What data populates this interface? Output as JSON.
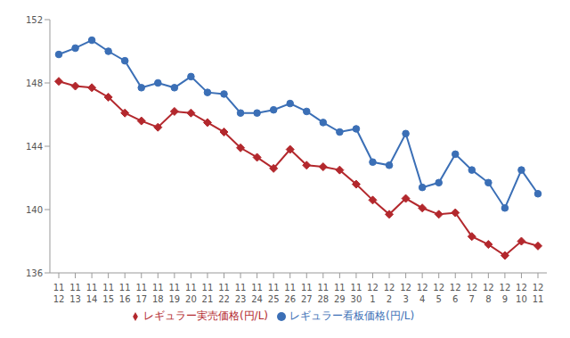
{
  "chart_data": {
    "type": "line",
    "categories": [
      "11\n12",
      "11\n13",
      "11\n14",
      "11\n15",
      "11\n16",
      "11\n17",
      "11\n18",
      "11\n19",
      "11\n20",
      "11\n21",
      "11\n22",
      "11\n23",
      "11\n24",
      "11\n25",
      "11\n26",
      "11\n27",
      "11\n28",
      "11\n29",
      "11\n30",
      "12\n1",
      "12\n2",
      "12\n3",
      "12\n4",
      "12\n5",
      "12\n6",
      "12\n7",
      "12\n8",
      "12\n9",
      "12\n10",
      "12\n11"
    ],
    "series": [
      {
        "name": "レギュラー看板価格(円/L)",
        "color": "#3b6fb6",
        "marker": "circle",
        "values": [
          149.8,
          150.2,
          150.7,
          150.0,
          149.4,
          147.7,
          148.0,
          147.7,
          148.4,
          147.4,
          147.3,
          146.1,
          146.1,
          146.3,
          146.7,
          146.2,
          145.5,
          144.9,
          145.1,
          143.0,
          142.8,
          144.8,
          141.4,
          141.7,
          143.5,
          142.5,
          141.7,
          140.1,
          142.5,
          141.0
        ]
      },
      {
        "name": "レギュラー実売価格(円/L)",
        "color": "#b3282d",
        "marker": "diamond",
        "values": [
          148.1,
          147.8,
          147.7,
          147.1,
          146.1,
          145.6,
          145.2,
          146.2,
          146.1,
          145.5,
          144.9,
          143.9,
          143.3,
          142.6,
          143.8,
          142.8,
          142.7,
          142.5,
          141.6,
          140.6,
          139.7,
          140.7,
          140.1,
          139.7,
          139.8,
          138.3,
          137.8,
          137.1,
          138.0,
          137.7
        ]
      }
    ],
    "ylim": [
      136,
      152
    ],
    "yticks": [
      136,
      140,
      144,
      148,
      152
    ],
    "grid": false,
    "legend": "bottom"
  }
}
